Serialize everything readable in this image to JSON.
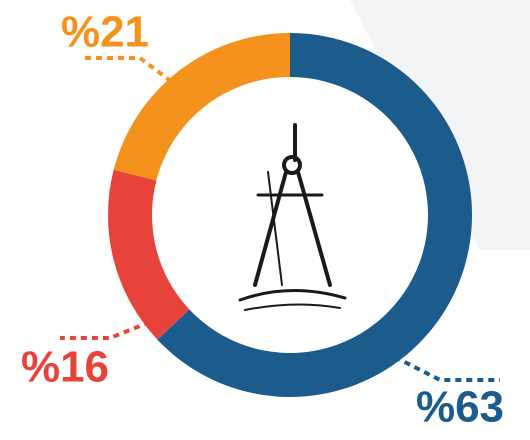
{
  "chart_data": {
    "type": "donut",
    "values": [
      63,
      16,
      21
    ],
    "value_labels": [
      "%63",
      "%16",
      "%21"
    ],
    "colors": [
      "#1b5c8c",
      "#e8433a",
      "#f5921e"
    ]
  }
}
